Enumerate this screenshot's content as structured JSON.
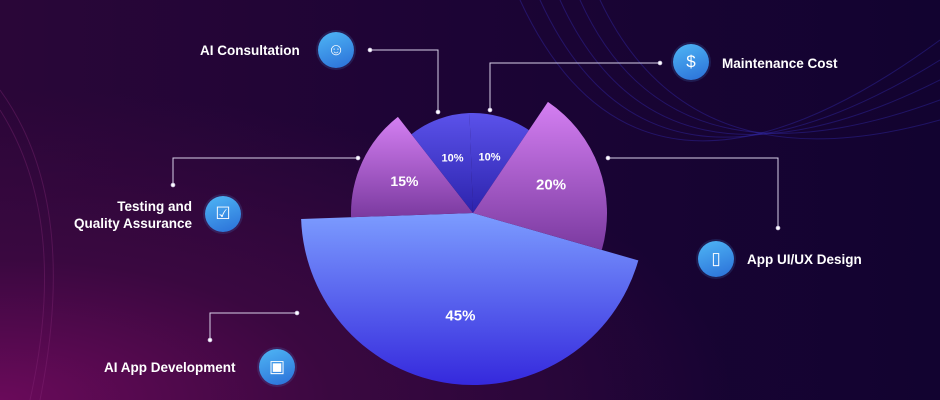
{
  "chart_data": {
    "type": "pie",
    "title": "",
    "slices": [
      {
        "label": "AI App Development",
        "value": 45,
        "text": "45%",
        "icon": "chip-icon"
      },
      {
        "label": "Testing and Quality Assurance",
        "value": 15,
        "text": "15%",
        "icon": "checklist-icon"
      },
      {
        "label": "AI Consultation",
        "value": 10,
        "text": "10%",
        "icon": "robot-icon"
      },
      {
        "label": "Maintenance Cost",
        "value": 10,
        "text": "10%",
        "icon": "money-hand-icon"
      },
      {
        "label": "App UI/UX Design",
        "value": 20,
        "text": "20%",
        "icon": "mobile-design-icon"
      }
    ]
  },
  "labels": {
    "ai_app_development": "AI App Development",
    "testing_1": "Testing and",
    "testing_2": "Quality Assurance",
    "ai_consultation": "AI Consultation",
    "maintenance": "Maintenance Cost",
    "ui_ux": "App UI/UX Design"
  },
  "colors": {
    "blue_light": "#7c9cff",
    "blue_dark": "#3529dd",
    "purple_light": "#d47ff2",
    "purple_dark": "#7b3aa0",
    "indigo_light": "#5b52ea",
    "indigo_dark": "#2c23ad"
  }
}
